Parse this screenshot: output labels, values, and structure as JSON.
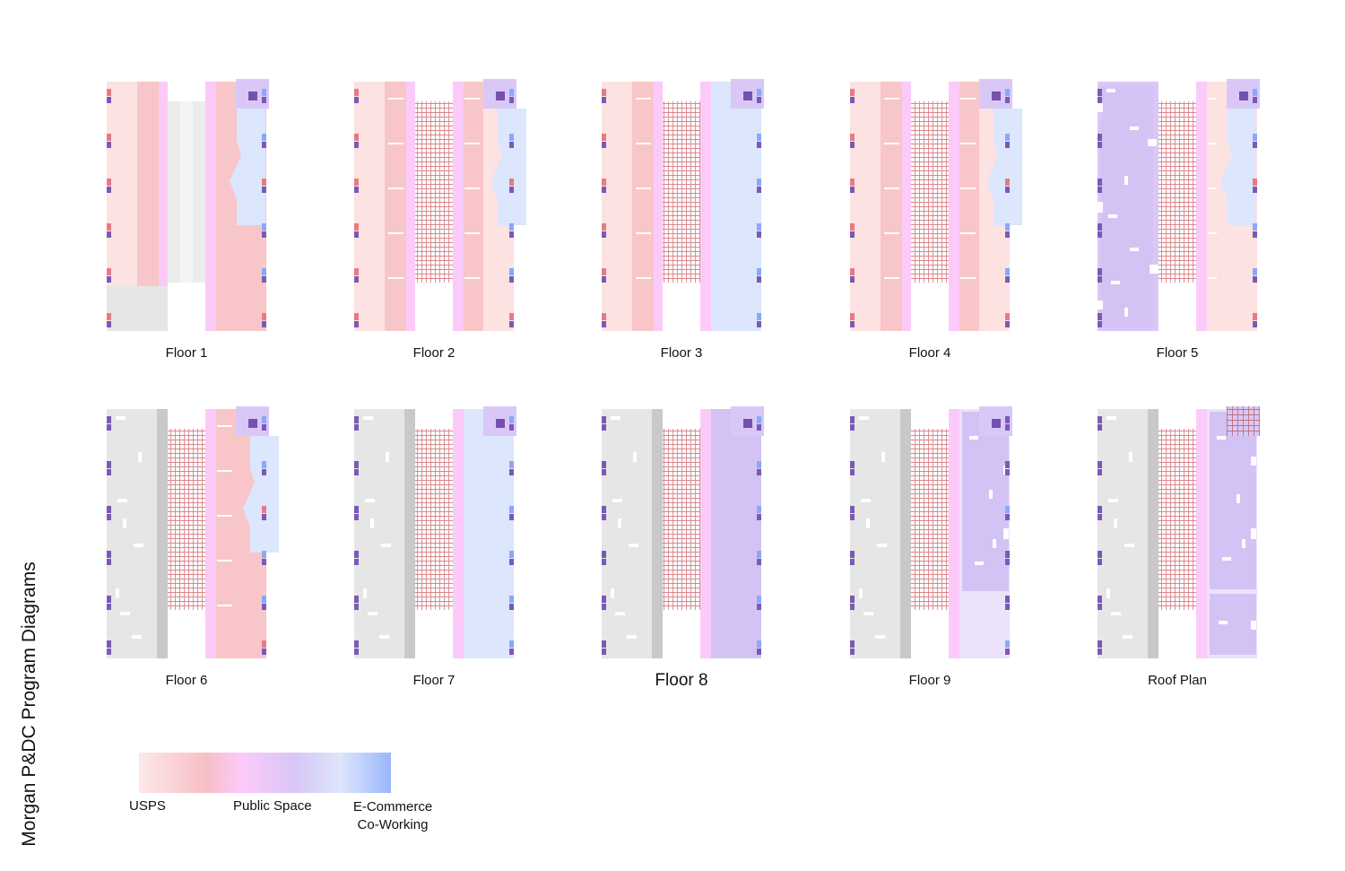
{
  "title": "Morgan P&DC Program Diagrams",
  "colors": {
    "usps_light": "#fde2e2",
    "usps": "#f8c6c9",
    "public": "#fccaf8",
    "public_violet": "#d9c8f6",
    "violet_mid": "#d3c3f5",
    "ecommerce": "#dce6fc",
    "ecommerce_blue": "#9db8fb",
    "gray_light": "#e6e6e6",
    "gray_dark": "#c9c9c9",
    "core_square": "#7550b0",
    "marker_red": "#e87a84",
    "marker_purple": "#7a5ab5",
    "marker_blue": "#8aa8f8",
    "lattice": "#d9868b",
    "white": "#ffffff"
  },
  "icons": [
    "stair-core-icon",
    "column-marker-icon",
    "lattice-hatch-icon"
  ],
  "plans": [
    {
      "id": "floor-1",
      "label": "Floor 1",
      "type": "f1"
    },
    {
      "id": "floor-2",
      "label": "Floor 2",
      "type": "f2"
    },
    {
      "id": "floor-3",
      "label": "Floor 3",
      "type": "f3"
    },
    {
      "id": "floor-4",
      "label": "Floor 4",
      "type": "f4"
    },
    {
      "id": "floor-5",
      "label": "Floor 5",
      "type": "f5"
    },
    {
      "id": "floor-6",
      "label": "Floor 6",
      "type": "f6"
    },
    {
      "id": "floor-7",
      "label": "Floor 7",
      "type": "f7"
    },
    {
      "id": "floor-8",
      "label": "Floor 8",
      "type": "f8"
    },
    {
      "id": "floor-9",
      "label": "Floor 9",
      "type": "f9"
    },
    {
      "id": "roof-plan",
      "label": "Roof Plan",
      "type": "roof"
    }
  ],
  "legend": {
    "items": [
      {
        "label": "USPS"
      },
      {
        "label": "Public Space"
      },
      {
        "label": "E-Commerce Co-Working"
      }
    ],
    "ecommerce_line1": "E-Commerce",
    "ecommerce_line2": "Co-Working"
  }
}
